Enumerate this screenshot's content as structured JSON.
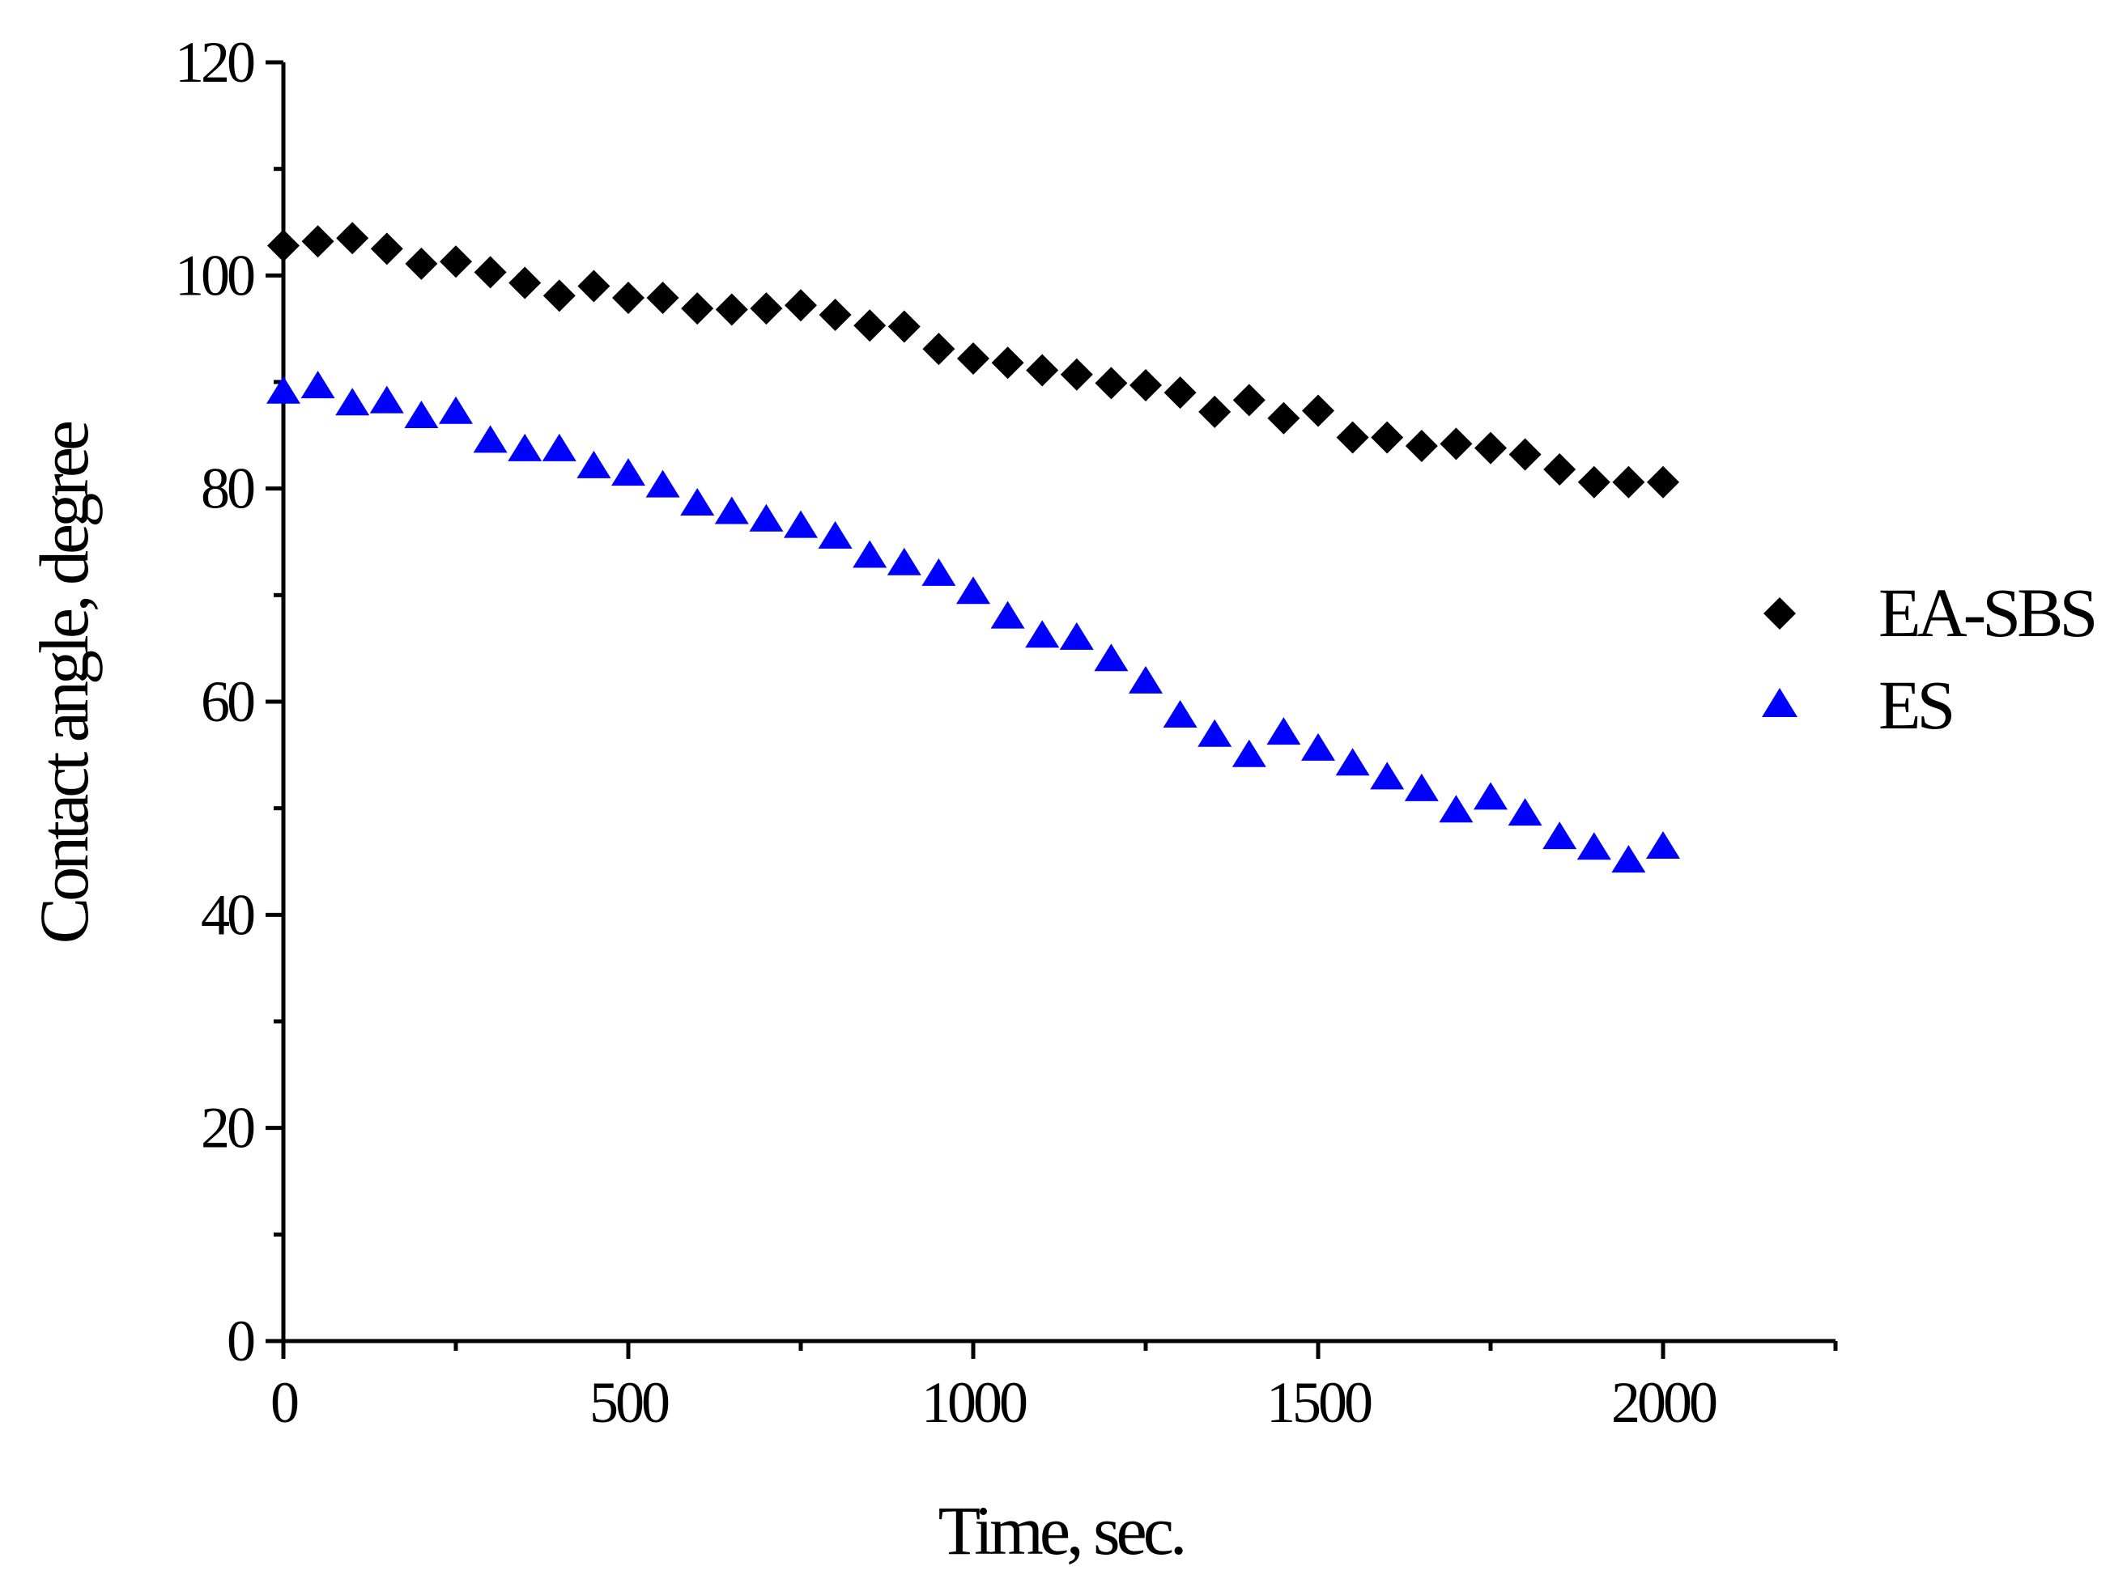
{
  "chart_data": {
    "type": "scatter",
    "title": "",
    "xlabel": "Time, sec.",
    "ylabel": "Contact angle, degree",
    "xlim": [
      0,
      2250
    ],
    "ylim": [
      0,
      120
    ],
    "x_major_ticks": [
      0,
      500,
      1000,
      1500,
      2000
    ],
    "x_minor_ticks": [
      250,
      750,
      1250,
      1750,
      2250
    ],
    "y_major_ticks": [
      0,
      20,
      40,
      60,
      80,
      100,
      120
    ],
    "y_minor_ticks": [
      10,
      30,
      50,
      70,
      90,
      110
    ],
    "x_tick_labels": [
      "0",
      "500",
      "1000",
      "1500",
      "2000"
    ],
    "y_tick_labels": [
      "0",
      "20",
      "40",
      "60",
      "80",
      "100",
      "120"
    ],
    "grid": false,
    "legend_position": "right",
    "series": [
      {
        "name": "EA-SBS",
        "marker": "diamond",
        "color": "#000000",
        "x": [
          0,
          50,
          100,
          150,
          200,
          250,
          300,
          350,
          400,
          450,
          500,
          550,
          600,
          650,
          700,
          750,
          800,
          850,
          900,
          950,
          1000,
          1050,
          1100,
          1150,
          1200,
          1250,
          1300,
          1350,
          1400,
          1450,
          1500,
          1550,
          1600,
          1650,
          1700,
          1750,
          1800,
          1850,
          1900,
          1950,
          2000
        ],
        "y": [
          102.8,
          103.2,
          103.5,
          102.5,
          101.1,
          101.3,
          100.3,
          99.3,
          98.1,
          99.0,
          97.9,
          97.9,
          96.9,
          96.8,
          96.9,
          97.2,
          96.3,
          95.3,
          95.2,
          93.1,
          92.2,
          91.8,
          91.1,
          90.7,
          89.9,
          89.7,
          89.0,
          87.2,
          88.3,
          86.6,
          87.3,
          84.8,
          84.8,
          84.0,
          84.2,
          83.8,
          83.2,
          81.8,
          80.6,
          80.6,
          80.6
        ]
      },
      {
        "name": "ES",
        "marker": "triangle",
        "color": "#0000ff",
        "x": [
          0,
          50,
          100,
          150,
          200,
          250,
          300,
          350,
          400,
          450,
          500,
          550,
          600,
          650,
          700,
          750,
          800,
          850,
          900,
          950,
          1000,
          1050,
          1100,
          1150,
          1200,
          1250,
          1300,
          1350,
          1400,
          1450,
          1500,
          1550,
          1600,
          1650,
          1700,
          1750,
          1800,
          1850,
          1900,
          1950,
          2000
        ],
        "y": [
          89.0,
          89.5,
          87.9,
          88.1,
          86.7,
          87.1,
          84.4,
          83.6,
          83.6,
          82.0,
          81.3,
          80.2,
          78.5,
          77.7,
          77.0,
          76.4,
          75.4,
          73.6,
          72.9,
          71.9,
          70.2,
          67.9,
          66.1,
          65.9,
          63.9,
          61.8,
          58.6,
          56.8,
          54.9,
          57.0,
          55.5,
          54.1,
          52.8,
          51.7,
          49.7,
          50.9,
          49.4,
          47.2,
          46.2,
          45.0,
          46.3
        ]
      }
    ]
  }
}
